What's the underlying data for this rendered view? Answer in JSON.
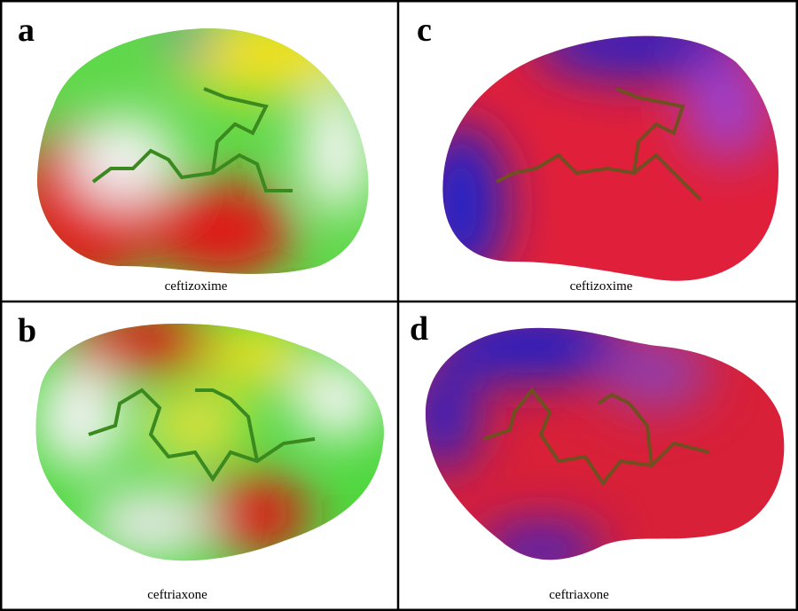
{
  "panels": [
    {
      "label": "a",
      "caption": "ceftizoxime"
    },
    {
      "label": "c",
      "caption": "ceftizoxime"
    },
    {
      "label": "b",
      "caption": "ceftriaxone"
    },
    {
      "label": "d",
      "caption": "ceftriaxone"
    }
  ]
}
